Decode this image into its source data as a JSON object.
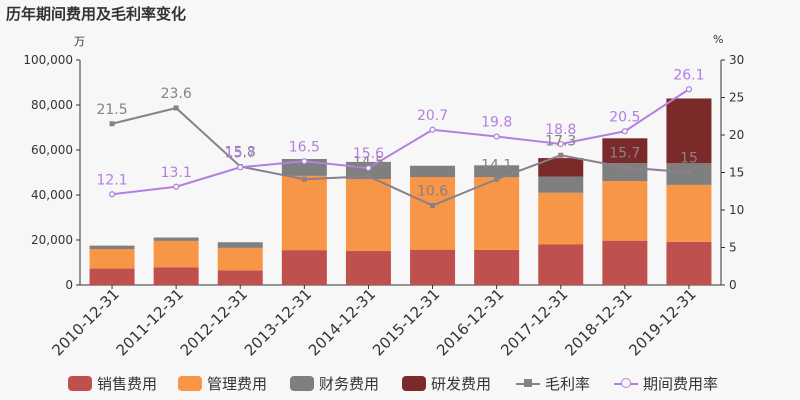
{
  "title": "历年期间费用及毛利率变化",
  "chart_data": {
    "type": "bar",
    "stacked": true,
    "unit_left": "万",
    "unit_right": "%",
    "categories": [
      "2010-12-31",
      "2011-12-31",
      "2012-12-31",
      "2013-12-31",
      "2014-12-31",
      "2015-12-31",
      "2016-12-31",
      "2017-12-31",
      "2018-12-31",
      "2019-12-31"
    ],
    "ylim_left": [
      0,
      100000
    ],
    "yticks_left": [
      "0",
      "20,000",
      "40,000",
      "60,000",
      "80,000",
      "100,000"
    ],
    "ylim_right": [
      0,
      30
    ],
    "yticks_right": [
      "0",
      "5",
      "10",
      "15",
      "20",
      "25",
      "30"
    ],
    "series": [
      {
        "name": "销售费用",
        "kind": "bar",
        "color": "#c0504d",
        "values": [
          7300,
          7900,
          6500,
          15500,
          15100,
          15700,
          15600,
          18000,
          19700,
          19200
        ]
      },
      {
        "name": "管理费用",
        "kind": "bar",
        "color": "#f79646",
        "values": [
          8700,
          11700,
          10000,
          33000,
          32000,
          32300,
          32300,
          23000,
          26500,
          25300
        ]
      },
      {
        "name": "财务费用",
        "kind": "bar",
        "color": "#7f7f7f",
        "values": [
          1500,
          1500,
          2500,
          7500,
          7600,
          5000,
          5300,
          7200,
          8000,
          9600
        ]
      },
      {
        "name": "研发费用",
        "kind": "bar",
        "color": "#7b2a2a",
        "values": [
          0,
          0,
          0,
          0,
          0,
          0,
          0,
          8200,
          11000,
          28800
        ]
      },
      {
        "name": "毛利率",
        "kind": "line",
        "axis": "right",
        "marker": "square",
        "color": "#8a7f8c",
        "values": [
          21.5,
          23.6,
          15.8,
          14.1,
          14.5,
          10.6,
          14.1,
          17.3,
          15.7,
          15
        ],
        "labels": [
          "21.5",
          "23.6",
          "15.8",
          "",
          "14.5",
          "10.6",
          "14.1",
          "17.3",
          "15.7",
          "15"
        ]
      },
      {
        "name": "期间费用率",
        "kind": "line",
        "axis": "right",
        "marker": "circle",
        "color": "#b37fe0",
        "values": [
          12.1,
          13.1,
          15.7,
          16.5,
          15.6,
          20.7,
          19.8,
          18.8,
          20.5,
          26.1
        ],
        "labels": [
          "12.1",
          "13.1",
          "15.7",
          "16.5",
          "15.6",
          "20.7",
          "19.8",
          "18.8",
          "20.5",
          "26.1"
        ]
      }
    ]
  }
}
